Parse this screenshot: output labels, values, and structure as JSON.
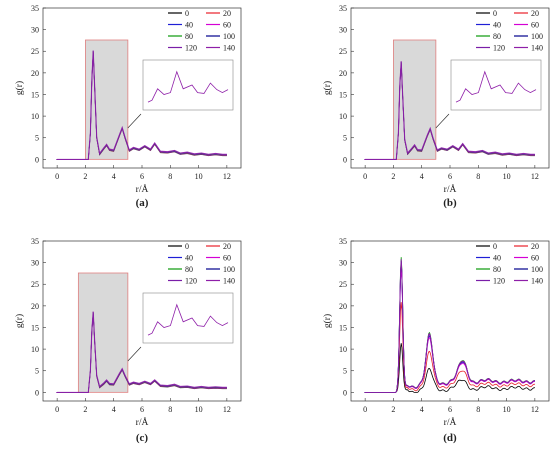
{
  "panels": [
    {
      "label": "(a)",
      "ylabel": "g(r)",
      "xlabel": "r/Å"
    },
    {
      "label": "(b)",
      "ylabel": "g(r)",
      "xlabel": "r/Å"
    },
    {
      "label": "(c)",
      "ylabel": "g(r)",
      "xlabel": "r/Å"
    },
    {
      "label": "(d)",
      "ylabel": "g(r)",
      "xlabel": "r/Å"
    }
  ],
  "legend_labels": [
    "0",
    "20",
    "40",
    "60",
    "80",
    "100",
    "120",
    "140"
  ],
  "series_colors": [
    "#000000",
    "#e8202a",
    "#1f1fd6",
    "#d400d4",
    "#0a9a0a",
    "#00008b",
    "#7a1ea8",
    "#8e1fa8"
  ],
  "chart_data": [
    {
      "type": "line",
      "title": "(a)",
      "xlabel": "r/Å",
      "ylabel": "g(r)",
      "xlim": [
        -1,
        13
      ],
      "ylim": [
        -2,
        35
      ],
      "xticks": [
        0,
        2,
        4,
        6,
        8,
        10,
        12
      ],
      "yticks": [
        0,
        5,
        10,
        15,
        20,
        25,
        30,
        35
      ],
      "legend_position": "top-right",
      "highlight_box": [
        2,
        5
      ],
      "inset": true,
      "series_names": [
        "0",
        "20",
        "40",
        "60",
        "80",
        "100",
        "120",
        "140"
      ],
      "points": [
        [
          0,
          0
        ],
        [
          2.2,
          0
        ],
        [
          2.35,
          6
        ],
        [
          2.45,
          18
        ],
        [
          2.55,
          25
        ],
        [
          2.65,
          17
        ],
        [
          2.8,
          5
        ],
        [
          3.0,
          1.2
        ],
        [
          3.3,
          2.5
        ],
        [
          3.5,
          3.3
        ],
        [
          3.7,
          2.2
        ],
        [
          4.0,
          2.0
        ],
        [
          4.4,
          5.5
        ],
        [
          4.6,
          7.2
        ],
        [
          4.8,
          5.0
        ],
        [
          5.1,
          2.0
        ],
        [
          5.4,
          2.6
        ],
        [
          5.8,
          2.2
        ],
        [
          6.2,
          3.0
        ],
        [
          6.6,
          2.2
        ],
        [
          6.9,
          3.6
        ],
        [
          7.3,
          1.7
        ],
        [
          7.8,
          1.6
        ],
        [
          8.3,
          1.9
        ],
        [
          8.7,
          1.3
        ],
        [
          9.2,
          1.5
        ],
        [
          9.7,
          1.1
        ],
        [
          10.2,
          1.3
        ],
        [
          10.7,
          1.0
        ],
        [
          11.2,
          1.2
        ],
        [
          11.7,
          1.0
        ],
        [
          12,
          1.0
        ]
      ]
    },
    {
      "type": "line",
      "title": "(b)",
      "xlabel": "r/Å",
      "ylabel": "g(r)",
      "xlim": [
        -1,
        13
      ],
      "ylim": [
        -2,
        35
      ],
      "xticks": [
        0,
        2,
        4,
        6,
        8,
        10,
        12
      ],
      "yticks": [
        0,
        5,
        10,
        15,
        20,
        25,
        30,
        35
      ],
      "legend_position": "top-right",
      "highlight_box": [
        2,
        5
      ],
      "inset": true,
      "series_names": [
        "0",
        "20",
        "40",
        "60",
        "80",
        "100",
        "120",
        "140"
      ],
      "points": [
        [
          0,
          0
        ],
        [
          2.2,
          0
        ],
        [
          2.35,
          6
        ],
        [
          2.45,
          17
        ],
        [
          2.55,
          22.5
        ],
        [
          2.65,
          15
        ],
        [
          2.8,
          4.5
        ],
        [
          3.0,
          1.3
        ],
        [
          3.3,
          2.4
        ],
        [
          3.5,
          3.2
        ],
        [
          3.7,
          2.1
        ],
        [
          4.0,
          2.0
        ],
        [
          4.4,
          5.5
        ],
        [
          4.6,
          7.0
        ],
        [
          4.8,
          4.8
        ],
        [
          5.1,
          2.0
        ],
        [
          5.4,
          2.5
        ],
        [
          5.8,
          2.2
        ],
        [
          6.2,
          3.0
        ],
        [
          6.6,
          2.2
        ],
        [
          6.9,
          3.5
        ],
        [
          7.3,
          1.7
        ],
        [
          7.8,
          1.6
        ],
        [
          8.3,
          1.9
        ],
        [
          8.7,
          1.3
        ],
        [
          9.2,
          1.5
        ],
        [
          9.7,
          1.1
        ],
        [
          10.2,
          1.3
        ],
        [
          10.7,
          1.0
        ],
        [
          11.2,
          1.2
        ],
        [
          11.7,
          1.0
        ],
        [
          12,
          1.0
        ]
      ]
    },
    {
      "type": "line",
      "title": "(c)",
      "xlabel": "r/Å",
      "ylabel": "g(r)",
      "xlim": [
        -1,
        13
      ],
      "ylim": [
        -2,
        35
      ],
      "xticks": [
        0,
        2,
        4,
        6,
        8,
        10,
        12
      ],
      "yticks": [
        0,
        5,
        10,
        15,
        20,
        25,
        30,
        35
      ],
      "legend_position": "top-right",
      "highlight_box": [
        1.5,
        5
      ],
      "inset": true,
      "series_names": [
        "0",
        "20",
        "40",
        "60",
        "80",
        "100",
        "120",
        "140"
      ],
      "points": [
        [
          0,
          0
        ],
        [
          2.2,
          0
        ],
        [
          2.35,
          5
        ],
        [
          2.45,
          14
        ],
        [
          2.55,
          18.5
        ],
        [
          2.65,
          12
        ],
        [
          2.8,
          3.8
        ],
        [
          3.0,
          1.2
        ],
        [
          3.3,
          2.0
        ],
        [
          3.5,
          2.7
        ],
        [
          3.7,
          1.9
        ],
        [
          4.0,
          1.8
        ],
        [
          4.4,
          4.2
        ],
        [
          4.6,
          5.3
        ],
        [
          4.8,
          3.8
        ],
        [
          5.1,
          1.8
        ],
        [
          5.4,
          2.2
        ],
        [
          5.8,
          1.9
        ],
        [
          6.2,
          2.4
        ],
        [
          6.6,
          1.9
        ],
        [
          6.9,
          2.7
        ],
        [
          7.3,
          1.5
        ],
        [
          7.8,
          1.4
        ],
        [
          8.3,
          1.7
        ],
        [
          8.7,
          1.2
        ],
        [
          9.2,
          1.3
        ],
        [
          9.7,
          1.0
        ],
        [
          10.2,
          1.2
        ],
        [
          10.7,
          1.0
        ],
        [
          11.2,
          1.1
        ],
        [
          11.7,
          1.0
        ],
        [
          12,
          1.0
        ]
      ]
    },
    {
      "type": "line",
      "title": "(d)",
      "xlabel": "r/Å",
      "ylabel": "g(r)",
      "xlim": [
        -1,
        13
      ],
      "ylim": [
        -2,
        35
      ],
      "xticks": [
        0,
        2,
        4,
        6,
        8,
        10,
        12
      ],
      "yticks": [
        0,
        5,
        10,
        15,
        20,
        25,
        30,
        35
      ],
      "legend_position": "top-right",
      "series": [
        {
          "name": "0",
          "peak": 12
        },
        {
          "name": "20",
          "peak": 22
        },
        {
          "name": "40",
          "peak": 31
        },
        {
          "name": "60",
          "peak": 30
        },
        {
          "name": "80",
          "peak": 33
        },
        {
          "name": "100",
          "peak": 32
        },
        {
          "name": "120",
          "peak": 32
        },
        {
          "name": "140",
          "peak": 32.5
        }
      ]
    }
  ]
}
